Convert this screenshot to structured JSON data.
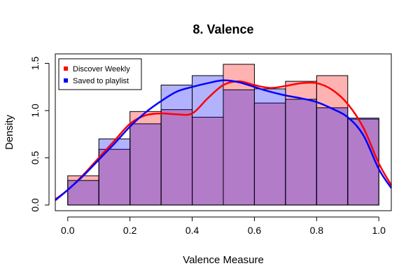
{
  "chart_data": {
    "type": "bar",
    "title": "8. Valence",
    "xlabel": "Valence Measure",
    "ylabel": "Density",
    "xlim": [
      -0.04,
      1.04
    ],
    "ylim": [
      -0.06,
      1.6
    ],
    "x_ticks": [
      0.0,
      0.2,
      0.4,
      0.6,
      0.8,
      1.0
    ],
    "x_tick_labels": [
      "0.0",
      "0.2",
      "0.4",
      "0.6",
      "0.8",
      "1.0"
    ],
    "y_ticks": [
      0.0,
      0.5,
      1.0,
      1.5
    ],
    "y_tick_labels": [
      "0.0",
      "0.5",
      "1.0",
      "1.5"
    ],
    "bins": [
      0.0,
      0.1,
      0.2,
      0.3,
      0.4,
      0.5,
      0.6,
      0.7,
      0.8,
      0.9,
      1.0
    ],
    "legend_position": "top-left",
    "grid": false,
    "series": [
      {
        "name": "Discover Weekly",
        "color": "#ff0000",
        "fill": "#ffb3b3",
        "histogram": [
          0.31,
          0.59,
          0.99,
          1.01,
          0.93,
          1.49,
          1.08,
          1.31,
          1.37,
          0.91
        ],
        "density_curve": {
          "x": [
            -0.04,
            0.0,
            0.05,
            0.1,
            0.15,
            0.2,
            0.25,
            0.3,
            0.35,
            0.4,
            0.45,
            0.5,
            0.55,
            0.6,
            0.65,
            0.7,
            0.75,
            0.8,
            0.85,
            0.9,
            0.95,
            1.0,
            1.04
          ],
          "y": [
            0.06,
            0.16,
            0.32,
            0.5,
            0.68,
            0.86,
            0.95,
            0.97,
            0.96,
            0.97,
            1.13,
            1.27,
            1.31,
            1.27,
            1.24,
            1.26,
            1.29,
            1.29,
            1.22,
            1.07,
            0.82,
            0.44,
            0.21
          ]
        }
      },
      {
        "name": "Saved to playlist",
        "color": "#0000ff",
        "fill": "#b3b3ff",
        "histogram": [
          0.26,
          0.7,
          0.86,
          1.27,
          1.37,
          1.22,
          1.23,
          1.12,
          1.03,
          0.92
        ],
        "density_curve": {
          "x": [
            -0.04,
            0.0,
            0.05,
            0.1,
            0.15,
            0.2,
            0.25,
            0.3,
            0.35,
            0.4,
            0.45,
            0.5,
            0.55,
            0.6,
            0.65,
            0.7,
            0.75,
            0.8,
            0.85,
            0.9,
            0.95,
            1.0,
            1.04
          ],
          "y": [
            0.05,
            0.16,
            0.31,
            0.48,
            0.65,
            0.83,
            0.98,
            1.1,
            1.2,
            1.25,
            1.29,
            1.32,
            1.3,
            1.25,
            1.2,
            1.16,
            1.13,
            1.09,
            1.02,
            0.93,
            0.74,
            0.38,
            0.18
          ]
        }
      }
    ]
  }
}
